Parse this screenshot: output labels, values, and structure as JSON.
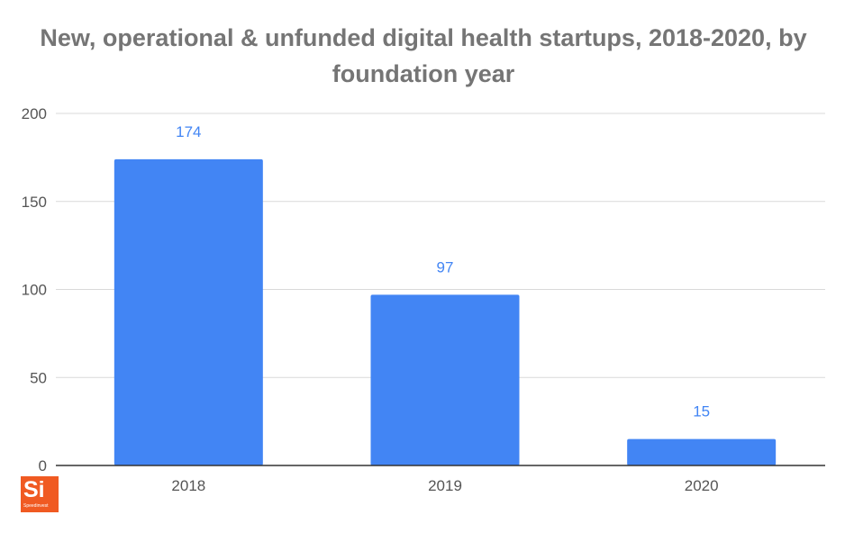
{
  "chart_data": {
    "type": "bar",
    "title": "New, operational & unfunded digital health startups, 2018-2020, by foundation year",
    "categories": [
      "2018",
      "2019",
      "2020"
    ],
    "values": [
      174,
      97,
      15
    ],
    "data_labels": [
      "174",
      "97",
      "15"
    ],
    "yticks": [
      "0",
      "50",
      "100",
      "150",
      "200"
    ],
    "ylim": [
      0,
      200
    ],
    "xlabel": "",
    "ylabel": "",
    "grid": true,
    "legend": "none",
    "bar_color": "#4285f4"
  },
  "logo": {
    "mark": "Si",
    "name": "Speedinvest",
    "color": "#f05a22"
  }
}
